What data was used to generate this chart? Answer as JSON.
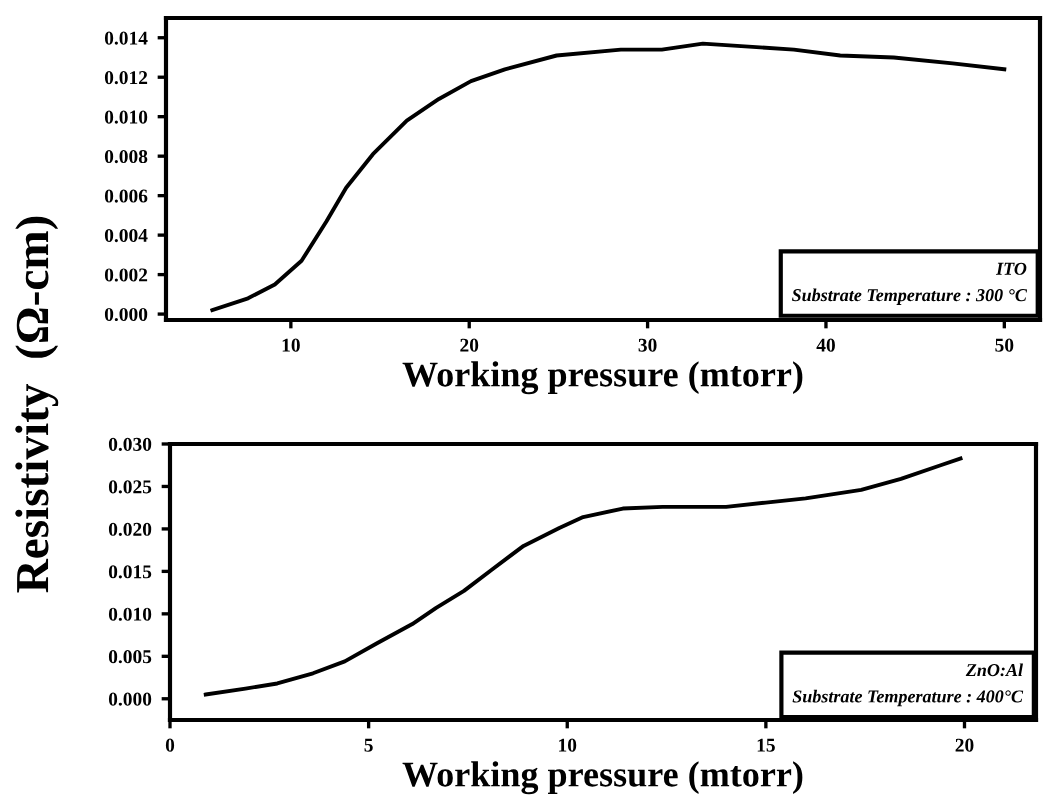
{
  "chart_data": [
    {
      "type": "line",
      "ylabel": "Resistivity  (Ω-cm)",
      "xlabel": "Working pressure (mtorr)",
      "xlim": [
        3,
        52
      ],
      "xticks": [
        10,
        20,
        30,
        40,
        50
      ],
      "ylim": [
        -0.0003,
        0.015
      ],
      "yticks": [
        {
          "value": 0,
          "label": "0.000"
        },
        {
          "value": 0.002,
          "label": "0.002"
        },
        {
          "value": 0.004,
          "label": "0.004"
        },
        {
          "value": 0.006,
          "label": "0.006"
        },
        {
          "value": 0.008,
          "label": "0.008"
        },
        {
          "value": 0.01,
          "label": "0.010"
        },
        {
          "value": 0.012,
          "label": "0.012"
        },
        {
          "value": 0.014,
          "label": "0.014"
        }
      ],
      "grid": false,
      "annotations": [
        "ITO",
        "Substrate Temperature : 300 °C"
      ],
      "series": [
        {
          "color": "#000000",
          "x": [
            5.6,
            7.6,
            9.1,
            10.6,
            12.0,
            13.1,
            14.6,
            16.5,
            18.3,
            20.1,
            22.0,
            24.9,
            28.5,
            30.8,
            33.1,
            38.2,
            40.8,
            43.8,
            47.1,
            50
          ],
          "values": [
            0.0002,
            0.0008,
            0.0015,
            0.0027,
            0.0047,
            0.0064,
            0.0081,
            0.0098,
            0.0109,
            0.0118,
            0.0124,
            0.0131,
            0.0134,
            0.0134,
            0.0137,
            0.0134,
            0.0131,
            0.013,
            0.0127,
            0.0124
          ]
        }
      ]
    },
    {
      "type": "line",
      "xlabel": "Working pressure (mtorr)",
      "xlim": [
        0,
        21.8
      ],
      "xticks": [
        0,
        5,
        10,
        15,
        20
      ],
      "ylim": [
        -0.0025,
        0.03
      ],
      "yticks": [
        {
          "value": 0,
          "label": "0.000"
        },
        {
          "value": 0.005,
          "label": "0.005"
        },
        {
          "value": 0.01,
          "label": "0.010"
        },
        {
          "value": 0.015,
          "label": "0.015"
        },
        {
          "value": 0.02,
          "label": "0.020"
        },
        {
          "value": 0.025,
          "label": "0.025"
        },
        {
          "value": 0.03,
          "label": "0.030"
        }
      ],
      "grid": false,
      "annotations": [
        "ZnO:Al",
        "Substrate Temperature : 400°C"
      ],
      "series": [
        {
          "color": "#000000",
          "x": [
            0.9,
            1.9,
            2.7,
            3.6,
            4.4,
            5.2,
            6.1,
            6.7,
            7.4,
            8.1,
            8.9,
            9.8,
            10.4,
            11.4,
            12.4,
            14.0,
            15.0,
            16.0,
            17.4,
            18.4,
            19.4,
            19.9
          ],
          "values": [
            0.0005,
            0.0012,
            0.0018,
            0.003,
            0.0044,
            0.0065,
            0.0088,
            0.0107,
            0.0127,
            0.0152,
            0.018,
            0.0201,
            0.0214,
            0.0224,
            0.0226,
            0.0226,
            0.0231,
            0.0236,
            0.0246,
            0.0259,
            0.0275,
            0.0283
          ]
        }
      ]
    }
  ]
}
